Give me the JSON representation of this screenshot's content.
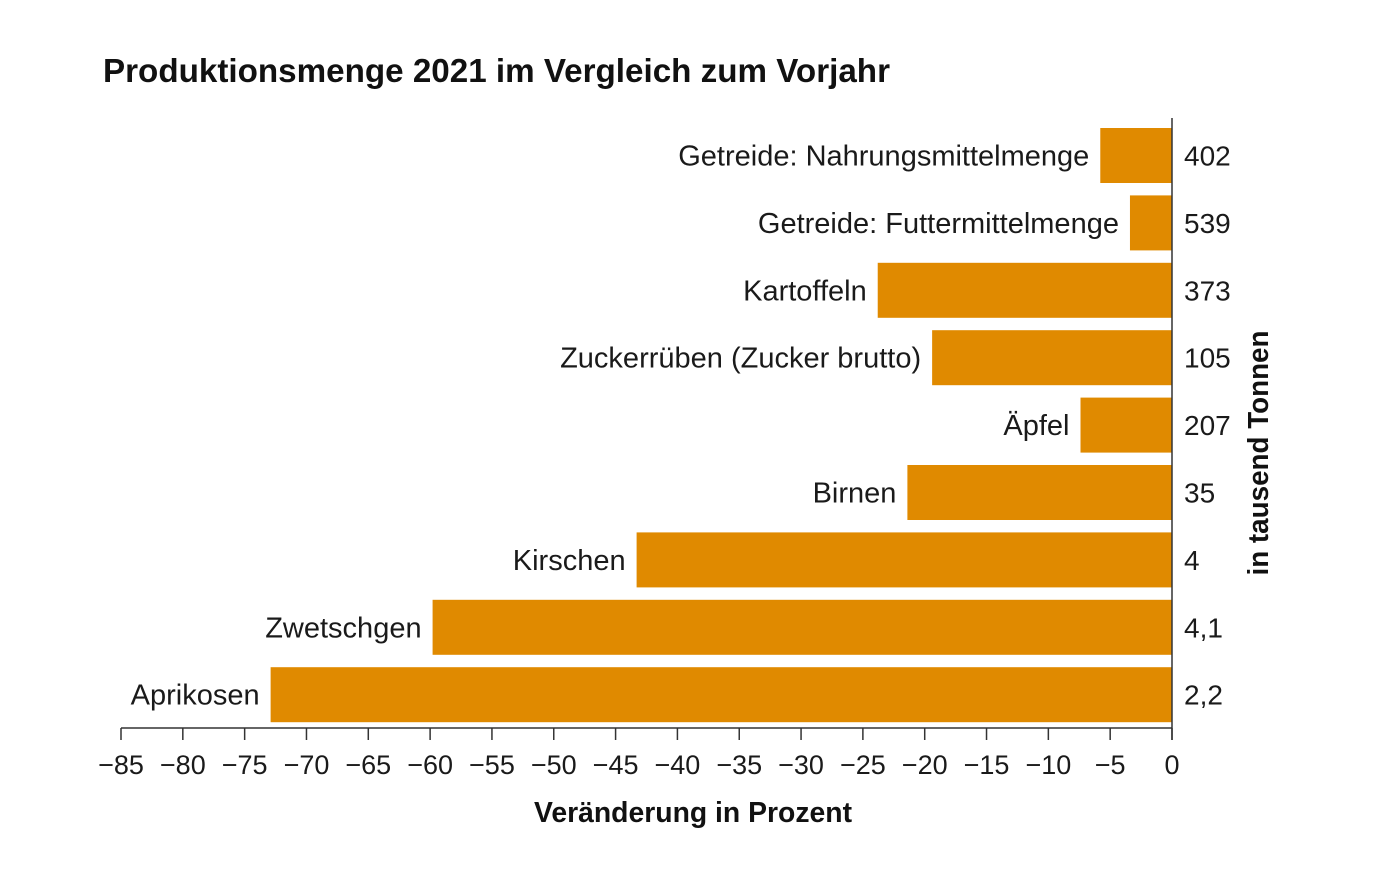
{
  "chart_data": {
    "type": "bar",
    "orientation": "horizontal",
    "title": "Produktionsmenge 2021 im Vergleich zum Vorjahr",
    "xlabel": "Veränderung in Prozent",
    "right_label": "in tausend Tonnen",
    "xlim": [
      -85,
      0
    ],
    "xticks": [
      -85,
      -80,
      -75,
      -70,
      -65,
      -60,
      -55,
      -50,
      -45,
      -40,
      -35,
      -30,
      -25,
      -20,
      -15,
      -10,
      -5,
      0
    ],
    "xtick_labels": [
      "−85",
      "−80",
      "−75",
      "−70",
      "−65",
      "−60",
      "−55",
      "−50",
      "−45",
      "−40",
      "−35",
      "−30",
      "−25",
      "−20",
      "−15",
      "−10",
      "−5",
      "0"
    ],
    "categories": [
      "Getreide: Nahrungsmittelmenge",
      "Getreide: Futtermittelmenge",
      "Kartoffeln",
      "Zuckerrüben (Zucker brutto)",
      "Äpfel",
      "Birnen",
      "Kirschen",
      "Zwetschgen",
      "Aprikosen"
    ],
    "values": [
      -5.8,
      -3.4,
      -23.8,
      -19.4,
      -7.4,
      -21.4,
      -43.3,
      -59.8,
      -72.9
    ],
    "quantities": [
      "402",
      "539",
      "373",
      "105",
      "207",
      "35",
      "4",
      "4,1",
      "2,2"
    ],
    "bar_color": "#E08A00",
    "grid": false
  }
}
